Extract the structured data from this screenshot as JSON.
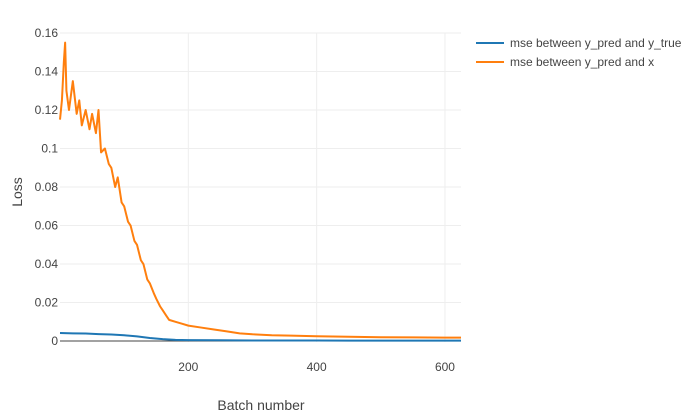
{
  "chart_data": {
    "type": "line",
    "title": "",
    "xlabel": "Batch number",
    "ylabel": "Loss",
    "xlim": [
      0,
      625
    ],
    "ylim": [
      -0.0005,
      0.16
    ],
    "xticks": [
      200,
      400,
      600
    ],
    "xtick_labels": [
      "200",
      "400",
      "600"
    ],
    "yticks": [
      0,
      0.02,
      0.04,
      0.06,
      0.08,
      0.1,
      0.12,
      0.14,
      0.16
    ],
    "ytick_labels": [
      "0",
      "0.02",
      "0.04",
      "0.06",
      "0.08",
      "0.1",
      "0.12",
      "0.14",
      "0.16"
    ],
    "grid": true,
    "legend_position": "top-right",
    "series": [
      {
        "name": "mse between y_pred and y_true",
        "color": "#1f77b4",
        "x": [
          0,
          20,
          40,
          60,
          80,
          100,
          120,
          140,
          160,
          180,
          200,
          250,
          300,
          350,
          400,
          450,
          500,
          550,
          600,
          625
        ],
        "y": [
          0.0042,
          0.004,
          0.0039,
          0.0036,
          0.0034,
          0.003,
          0.0024,
          0.0016,
          0.001,
          0.0006,
          0.0005,
          0.0004,
          0.0003,
          0.0003,
          0.0003,
          0.0002,
          0.0002,
          0.0002,
          0.0002,
          0.0002
        ]
      },
      {
        "name": "mse between y_pred and x",
        "color": "#ff7f0e",
        "x": [
          0,
          3,
          6,
          8,
          10,
          14,
          20,
          26,
          30,
          34,
          40,
          46,
          50,
          56,
          60,
          64,
          70,
          76,
          80,
          86,
          90,
          96,
          100,
          106,
          110,
          116,
          120,
          126,
          130,
          136,
          140,
          146,
          150,
          156,
          160,
          166,
          170,
          180,
          190,
          200,
          220,
          240,
          260,
          280,
          300,
          330,
          360,
          400,
          450,
          500,
          550,
          600,
          625
        ],
        "y": [
          0.115,
          0.125,
          0.145,
          0.155,
          0.13,
          0.12,
          0.135,
          0.118,
          0.125,
          0.112,
          0.12,
          0.11,
          0.118,
          0.108,
          0.12,
          0.098,
          0.1,
          0.092,
          0.09,
          0.08,
          0.085,
          0.072,
          0.07,
          0.062,
          0.06,
          0.052,
          0.05,
          0.042,
          0.04,
          0.032,
          0.03,
          0.025,
          0.022,
          0.018,
          0.016,
          0.013,
          0.011,
          0.01,
          0.009,
          0.008,
          0.007,
          0.006,
          0.005,
          0.004,
          0.0035,
          0.003,
          0.0028,
          0.0025,
          0.0022,
          0.002,
          0.0019,
          0.0018,
          0.0018
        ]
      }
    ]
  }
}
